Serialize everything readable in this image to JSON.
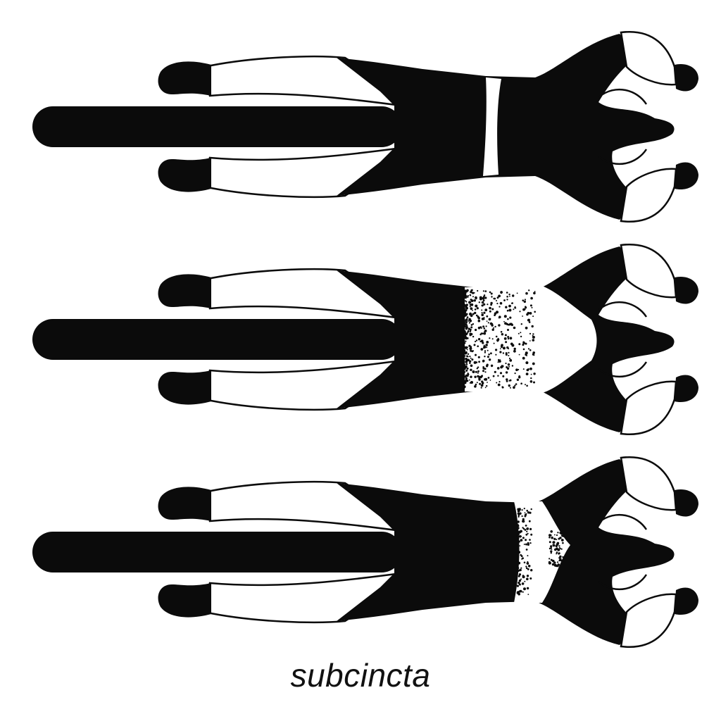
{
  "figure": {
    "caption": "subcincta",
    "ink_color": "#0b0b0b",
    "paper_color": "#ffffff",
    "variants": [
      {
        "pattern": "narrow-white-band"
      },
      {
        "pattern": "broad-stippled-white-forequarters"
      },
      {
        "pattern": "white-band-with-stippled-edge"
      }
    ]
  }
}
